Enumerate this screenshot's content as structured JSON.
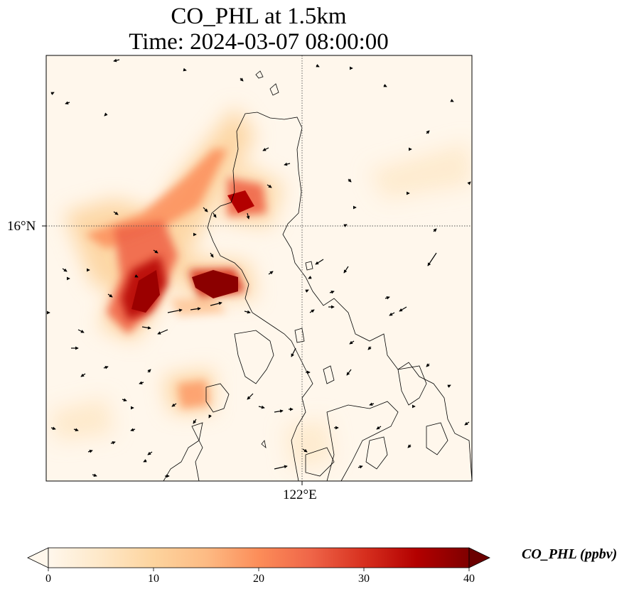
{
  "title": {
    "line1": "CO_PHL at 1.5km",
    "line2": "Time: 2024-03-07 08:00:00"
  },
  "map": {
    "lat_gridline_label": "16°N",
    "lon_gridline_label": "122°E",
    "field_variable": "CO_PHL",
    "overlay": "wind vectors",
    "coastline_color": "#000000",
    "gridline_style": "dotted"
  },
  "colorbar": {
    "label": "CO_PHL (ppbv)",
    "min": 0,
    "max": 40,
    "ticks": [
      "0",
      "10",
      "20",
      "30",
      "40"
    ],
    "extend": "both",
    "colormap": "OrRd",
    "colors": [
      "#fff7ec",
      "#fee8c8",
      "#fdd49e",
      "#fdbb84",
      "#fc8d59",
      "#ef6548",
      "#d7301f",
      "#b30000",
      "#7f0000"
    ]
  }
}
